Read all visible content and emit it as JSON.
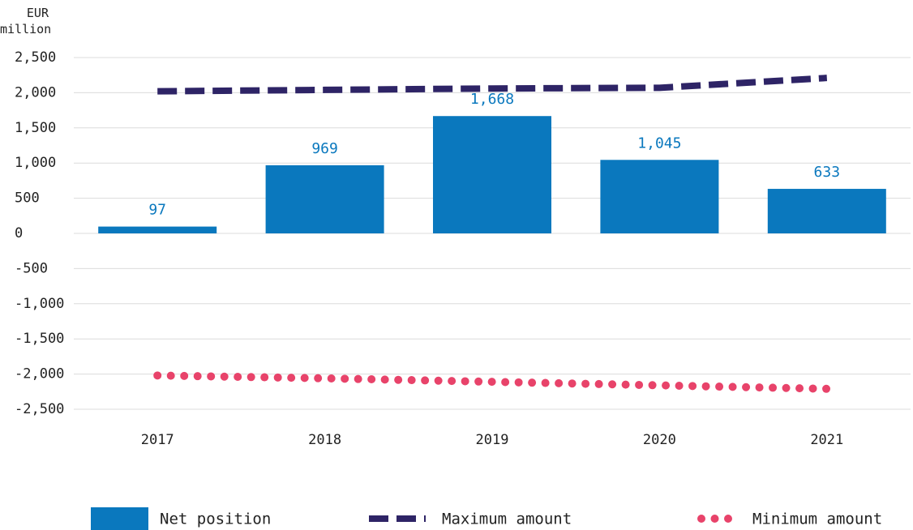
{
  "chart_data": {
    "type": "bar",
    "y_axis_label": "EUR million",
    "categories": [
      "2017",
      "2018",
      "2019",
      "2020",
      "2021"
    ],
    "series": [
      {
        "name": "Net position",
        "type": "bar",
        "color": "#0a78be",
        "values": [
          97,
          969,
          1668,
          1045,
          633
        ],
        "value_labels": [
          "97",
          "969",
          "1,668",
          "1,045",
          "633"
        ]
      },
      {
        "name": "Maximum amount",
        "type": "line",
        "style": "dashed",
        "color": "#2e2466",
        "values": [
          2020,
          2040,
          2060,
          2070,
          2210
        ]
      },
      {
        "name": "Minimum amount",
        "type": "line",
        "style": "dotted",
        "color": "#e8436a",
        "values": [
          -2020,
          -2060,
          -2110,
          -2160,
          -2210
        ]
      }
    ],
    "ylim": [
      -2500,
      2500
    ],
    "yticks": [
      {
        "value": -2500,
        "label": "-2,500"
      },
      {
        "value": -2000,
        "label": "-2,000"
      },
      {
        "value": -1500,
        "label": "-1,500"
      },
      {
        "value": -1000,
        "label": "-1,000"
      },
      -500,
      0,
      500,
      {
        "value": 1000,
        "label": "1,000"
      },
      {
        "value": 1500,
        "label": "1,500"
      },
      {
        "value": 2000,
        "label": "2,000"
      },
      {
        "value": 2500,
        "label": "2,500"
      }
    ],
    "grid": true,
    "legend": "bottom"
  }
}
